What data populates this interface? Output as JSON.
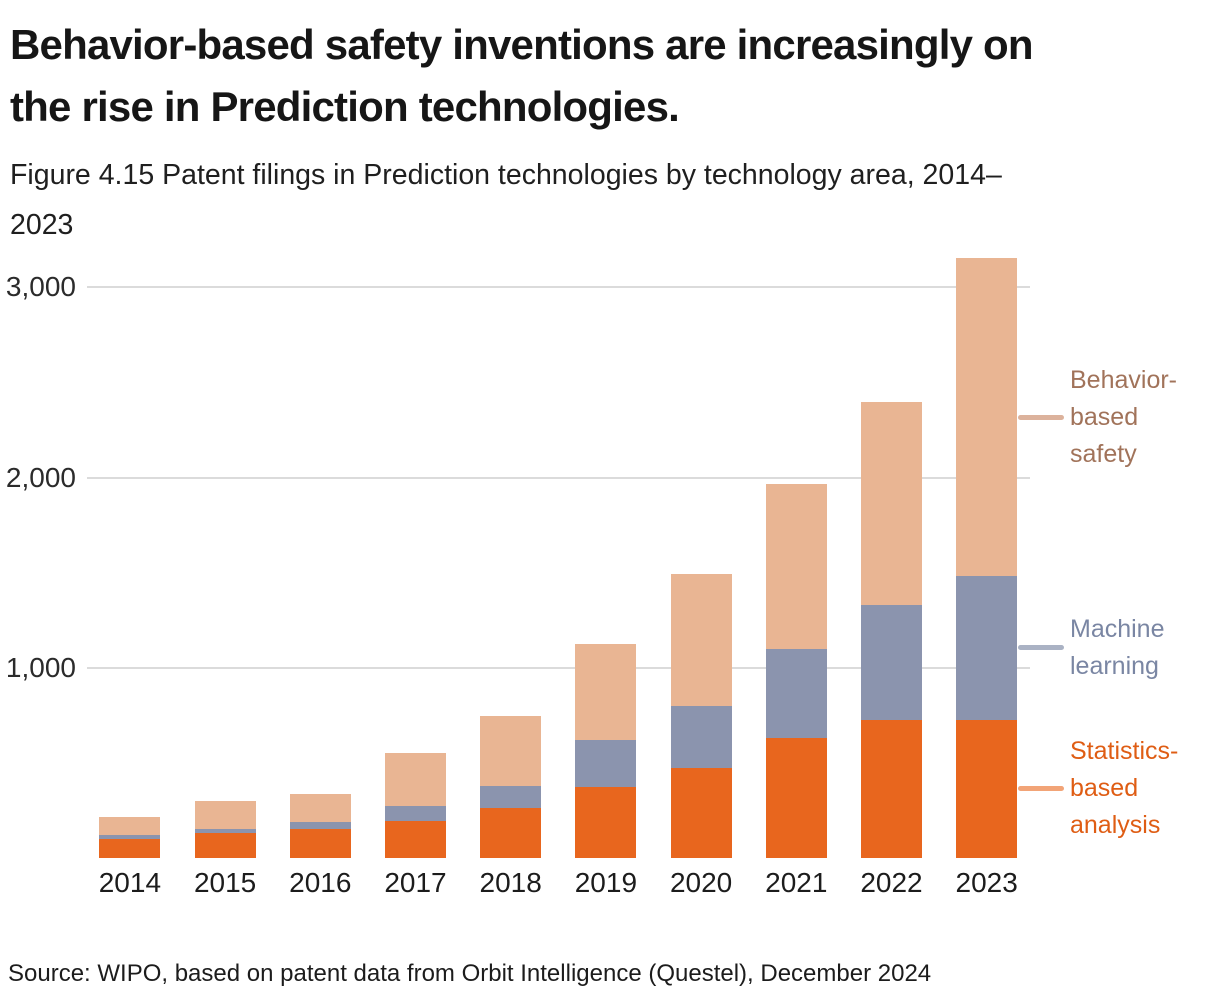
{
  "page": {
    "title_lines": [
      "Behavior-based safety inventions are increasingly on",
      "the rise in Prediction technologies."
    ],
    "subtitle_lines": [
      "Figure 4.15 Patent filings in Prediction technologies by technology area, 2014–",
      "2023"
    ],
    "source": "Source: WIPO, based on patent data from Orbit Intelligence (Questel), December 2024"
  },
  "chart_data": {
    "type": "bar",
    "stacked": true,
    "title": "Figure 4.15 Patent filings in Prediction technologies by technology area, 2014–2023",
    "xlabel": "",
    "ylabel": "",
    "categories": [
      "2014",
      "2015",
      "2016",
      "2017",
      "2018",
      "2019",
      "2020",
      "2021",
      "2022",
      "2023"
    ],
    "series": [
      {
        "name": "Statistics-based analysis",
        "color": "#e8661e",
        "values": [
          98,
          130,
          154,
          196,
          261,
          372,
          472,
          629,
          724,
          728
        ]
      },
      {
        "name": "Machine learning",
        "color": "#8b94ae",
        "values": [
          23,
          24,
          35,
          76,
          116,
          247,
          327,
          472,
          608,
          755
        ]
      },
      {
        "name": "Behavior-based safety",
        "color": "#e9b593",
        "values": [
          94,
          146,
          150,
          279,
          368,
          504,
          694,
          864,
          1064,
          1670
        ]
      }
    ],
    "ylim": [
      0,
      3300
    ],
    "yticks": [
      {
        "value": 1000,
        "label": "1,000"
      },
      {
        "value": 2000,
        "label": "2,000"
      },
      {
        "value": 3000,
        "label": "3,000"
      }
    ],
    "grid": "horizontal-only",
    "legend_position": "right",
    "legend": [
      {
        "series": "Behavior-based safety",
        "lines": [
          "Behavior-",
          "based",
          "safety"
        ],
        "text_color": "#a1735a",
        "tick_color": "#dcb29c"
      },
      {
        "series": "Machine learning",
        "lines": [
          "Machine",
          "learning"
        ],
        "text_color": "#7a86a3",
        "tick_color": "#aab2c4"
      },
      {
        "series": "Statistics-based analysis",
        "lines": [
          "Statistics-",
          "based",
          "analysis"
        ],
        "text_color": "#df5d14",
        "tick_color": "#f2a477"
      }
    ]
  }
}
